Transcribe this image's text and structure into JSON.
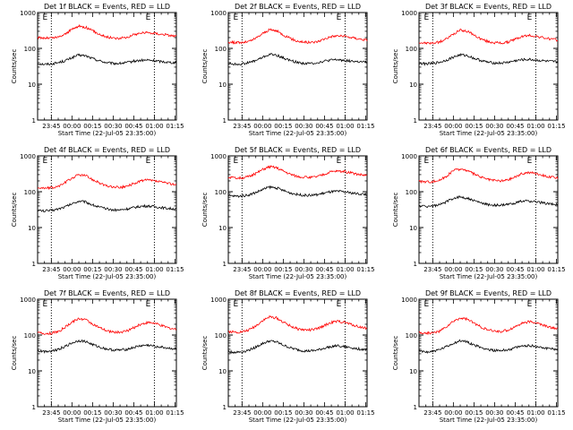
{
  "figure": {
    "xlabel": "Start Time (22-Jul-05 23:35:00)",
    "ylabel": "Counts/sec",
    "x_tick_labels": [
      "23:45",
      "00:00",
      "00:15",
      "00:30",
      "00:45",
      "01:00",
      "01:15"
    ],
    "y_tick_labels": [
      "1",
      "10",
      "100",
      "1000"
    ],
    "marker_label": "E",
    "colors": {
      "events": "#000000",
      "lld": "#ff0000",
      "axes": "#000000",
      "background": "#ffffff"
    }
  },
  "chart_data": [
    {
      "type": "line",
      "title": "Det 1f BLACK = Events, RED = LLD",
      "xlabel": "Start Time (22-Jul-05 23:35:00)",
      "ylabel": "Counts/sec",
      "yscale": "log",
      "ylim": [
        1,
        1000
      ],
      "xlim_minutes": [
        0,
        101
      ],
      "markers_minutes": [
        10,
        85
      ],
      "series": [
        {
          "name": "Events",
          "color": "#000000",
          "x_minutes": [
            0,
            5,
            10,
            15,
            20,
            25,
            30,
            35,
            40,
            45,
            50,
            55,
            60,
            65,
            70,
            75,
            80,
            85,
            90,
            95,
            101
          ],
          "y": [
            38,
            36,
            37,
            40,
            45,
            55,
            65,
            62,
            52,
            45,
            40,
            38,
            38,
            40,
            44,
            46,
            47,
            45,
            43,
            41,
            40
          ]
        },
        {
          "name": "LLD",
          "color": "#ff0000",
          "x_minutes": [
            0,
            5,
            10,
            15,
            20,
            25,
            30,
            35,
            40,
            45,
            50,
            55,
            60,
            65,
            70,
            75,
            80,
            85,
            90,
            95,
            101
          ],
          "y": [
            200,
            195,
            195,
            205,
            250,
            340,
            420,
            390,
            310,
            250,
            210,
            195,
            190,
            205,
            240,
            270,
            275,
            265,
            250,
            235,
            220
          ]
        }
      ]
    },
    {
      "type": "line",
      "title": "Det 2f BLACK = Events, RED = LLD",
      "xlabel": "Start Time (22-Jul-05 23:35:00)",
      "ylabel": "Counts/sec",
      "yscale": "log",
      "ylim": [
        1,
        1000
      ],
      "xlim_minutes": [
        0,
        101
      ],
      "markers_minutes": [
        10,
        85
      ],
      "series": [
        {
          "name": "Events",
          "color": "#000000",
          "x_minutes": [
            0,
            5,
            10,
            15,
            20,
            25,
            30,
            35,
            40,
            45,
            50,
            55,
            60,
            65,
            70,
            75,
            80,
            85,
            90,
            95,
            101
          ],
          "y": [
            38,
            36,
            37,
            40,
            46,
            56,
            68,
            65,
            54,
            46,
            41,
            38,
            38,
            40,
            44,
            47,
            48,
            46,
            44,
            42,
            41
          ]
        },
        {
          "name": "LLD",
          "color": "#ff0000",
          "x_minutes": [
            0,
            5,
            10,
            15,
            20,
            25,
            30,
            35,
            40,
            45,
            50,
            55,
            60,
            65,
            70,
            75,
            80,
            85,
            90,
            95,
            101
          ],
          "y": [
            150,
            145,
            145,
            155,
            190,
            260,
            330,
            310,
            240,
            190,
            160,
            150,
            145,
            155,
            185,
            215,
            225,
            215,
            200,
            185,
            170
          ]
        }
      ]
    },
    {
      "type": "line",
      "title": "Det 3f BLACK = Events, RED = LLD",
      "xlabel": "Start Time (22-Jul-05 23:35:00)",
      "ylabel": "Counts/sec",
      "yscale": "log",
      "ylim": [
        1,
        1000
      ],
      "xlim_minutes": [
        0,
        101
      ],
      "markers_minutes": [
        10,
        85
      ],
      "series": [
        {
          "name": "Events",
          "color": "#000000",
          "x_minutes": [
            0,
            5,
            10,
            15,
            20,
            25,
            30,
            35,
            40,
            45,
            50,
            55,
            60,
            65,
            70,
            75,
            80,
            85,
            90,
            95,
            101
          ],
          "y": [
            38,
            37,
            38,
            41,
            47,
            57,
            66,
            63,
            53,
            46,
            41,
            39,
            39,
            41,
            45,
            48,
            49,
            47,
            45,
            43,
            42
          ]
        },
        {
          "name": "LLD",
          "color": "#ff0000",
          "x_minutes": [
            0,
            5,
            10,
            15,
            20,
            25,
            30,
            35,
            40,
            45,
            50,
            55,
            60,
            65,
            70,
            75,
            80,
            85,
            90,
            95,
            101
          ],
          "y": [
            145,
            140,
            140,
            150,
            185,
            250,
            320,
            300,
            235,
            185,
            155,
            145,
            140,
            150,
            180,
            215,
            230,
            220,
            200,
            185,
            170
          ]
        }
      ]
    },
    {
      "type": "line",
      "title": "Det 4f BLACK = Events, RED = LLD",
      "xlabel": "Start Time (22-Jul-05 23:35:00)",
      "ylabel": "Counts/sec",
      "yscale": "log",
      "ylim": [
        1,
        1000
      ],
      "xlim_minutes": [
        0,
        101
      ],
      "markers_minutes": [
        10,
        85
      ],
      "series": [
        {
          "name": "Events",
          "color": "#000000",
          "x_minutes": [
            0,
            5,
            10,
            15,
            20,
            25,
            30,
            35,
            40,
            45,
            50,
            55,
            60,
            65,
            70,
            75,
            80,
            85,
            90,
            95,
            101
          ],
          "y": [
            30,
            29,
            30,
            33,
            38,
            46,
            55,
            52,
            43,
            37,
            33,
            31,
            31,
            33,
            36,
            39,
            40,
            38,
            36,
            34,
            33
          ]
        },
        {
          "name": "LLD",
          "color": "#ff0000",
          "x_minutes": [
            0,
            5,
            10,
            15,
            20,
            25,
            30,
            35,
            40,
            45,
            50,
            55,
            60,
            65,
            70,
            75,
            80,
            85,
            90,
            95,
            101
          ],
          "y": [
            130,
            125,
            128,
            140,
            180,
            240,
            300,
            280,
            220,
            175,
            145,
            135,
            132,
            140,
            170,
            200,
            210,
            200,
            185,
            170,
            160
          ]
        }
      ]
    },
    {
      "type": "line",
      "title": "Det 5f BLACK = Events, RED = LLD",
      "xlabel": "Start Time (22-Jul-05 23:35:00)",
      "ylabel": "Counts/sec",
      "yscale": "log",
      "ylim": [
        1,
        1000
      ],
      "xlim_minutes": [
        0,
        101
      ],
      "markers_minutes": [
        10,
        85
      ],
      "series": [
        {
          "name": "Events",
          "color": "#000000",
          "x_minutes": [
            0,
            5,
            10,
            15,
            20,
            25,
            30,
            35,
            40,
            45,
            50,
            55,
            60,
            65,
            70,
            75,
            80,
            85,
            90,
            95,
            101
          ],
          "y": [
            78,
            75,
            76,
            82,
            95,
            115,
            135,
            128,
            108,
            93,
            84,
            80,
            79,
            83,
            92,
            100,
            102,
            98,
            92,
            87,
            84
          ]
        },
        {
          "name": "LLD",
          "color": "#ff0000",
          "x_minutes": [
            0,
            5,
            10,
            15,
            20,
            25,
            30,
            35,
            40,
            45,
            50,
            55,
            60,
            65,
            70,
            75,
            80,
            85,
            90,
            95,
            101
          ],
          "y": [
            250,
            240,
            245,
            265,
            320,
            420,
            500,
            470,
            380,
            310,
            270,
            255,
            250,
            265,
            310,
            360,
            380,
            360,
            330,
            305,
            285
          ]
        }
      ]
    },
    {
      "type": "line",
      "title": "Det 6f BLACK = Events, RED = LLD",
      "xlabel": "Start Time (22-Jul-05 23:35:00)",
      "ylabel": "Counts/sec",
      "yscale": "log",
      "ylim": [
        1,
        1000
      ],
      "xlim_minutes": [
        0,
        101
      ],
      "markers_minutes": [
        10,
        85
      ],
      "series": [
        {
          "name": "Events",
          "color": "#000000",
          "x_minutes": [
            0,
            5,
            10,
            15,
            20,
            25,
            30,
            35,
            40,
            45,
            50,
            55,
            60,
            65,
            70,
            75,
            80,
            85,
            90,
            95,
            101
          ],
          "y": [
            40,
            39,
            40,
            43,
            52,
            66,
            72,
            66,
            56,
            49,
            44,
            42,
            42,
            44,
            49,
            54,
            55,
            52,
            49,
            46,
            44
          ]
        },
        {
          "name": "LLD",
          "color": "#ff0000",
          "x_minutes": [
            0,
            5,
            10,
            15,
            20,
            25,
            30,
            35,
            40,
            45,
            50,
            55,
            60,
            65,
            70,
            75,
            80,
            85,
            90,
            95,
            101
          ],
          "y": [
            195,
            190,
            192,
            210,
            270,
            390,
            430,
            390,
            310,
            255,
            220,
            205,
            200,
            215,
            260,
            320,
            345,
            325,
            290,
            260,
            240
          ]
        }
      ]
    },
    {
      "type": "line",
      "title": "Det 7f BLACK = Events, RED = LLD",
      "xlabel": "Start Time (22-Jul-05 23:35:00)",
      "ylabel": "Counts/sec",
      "yscale": "log",
      "ylim": [
        1,
        1000
      ],
      "xlim_minutes": [
        0,
        101
      ],
      "markers_minutes": [
        10,
        85
      ],
      "series": [
        {
          "name": "Events",
          "color": "#000000",
          "x_minutes": [
            0,
            5,
            10,
            15,
            20,
            25,
            30,
            35,
            40,
            45,
            50,
            55,
            60,
            65,
            70,
            75,
            80,
            85,
            90,
            95,
            101
          ],
          "y": [
            36,
            35,
            36,
            40,
            48,
            60,
            70,
            66,
            54,
            46,
            41,
            38,
            38,
            40,
            45,
            50,
            52,
            49,
            46,
            43,
            41
          ]
        },
        {
          "name": "LLD",
          "color": "#ff0000",
          "x_minutes": [
            0,
            5,
            10,
            15,
            20,
            25,
            30,
            35,
            40,
            45,
            50,
            55,
            60,
            65,
            70,
            75,
            80,
            85,
            90,
            95,
            101
          ],
          "y": [
            115,
            110,
            112,
            125,
            165,
            230,
            290,
            270,
            205,
            160,
            132,
            122,
            120,
            130,
            160,
            200,
            225,
            215,
            185,
            160,
            145
          ]
        }
      ]
    },
    {
      "type": "line",
      "title": "Det 8f BLACK = Events, RED = LLD",
      "xlabel": "Start Time (22-Jul-05 23:35:00)",
      "ylabel": "Counts/sec",
      "yscale": "log",
      "ylim": [
        1,
        1000
      ],
      "xlim_minutes": [
        0,
        101
      ],
      "markers_minutes": [
        10,
        85
      ],
      "series": [
        {
          "name": "Events",
          "color": "#000000",
          "x_minutes": [
            0,
            5,
            10,
            15,
            20,
            25,
            30,
            35,
            40,
            45,
            50,
            55,
            60,
            65,
            70,
            75,
            80,
            85,
            90,
            95,
            101
          ],
          "y": [
            34,
            33,
            34,
            38,
            46,
            58,
            68,
            64,
            52,
            44,
            39,
            36,
            36,
            38,
            43,
            48,
            50,
            47,
            44,
            41,
            39
          ]
        },
        {
          "name": "LLD",
          "color": "#ff0000",
          "x_minutes": [
            0,
            5,
            10,
            15,
            20,
            25,
            30,
            35,
            40,
            45,
            50,
            55,
            60,
            65,
            70,
            75,
            80,
            85,
            90,
            95,
            101
          ],
          "y": [
            125,
            120,
            122,
            138,
            180,
            255,
            320,
            300,
            230,
            180,
            150,
            140,
            138,
            150,
            185,
            225,
            240,
            225,
            195,
            170,
            155
          ]
        }
      ]
    },
    {
      "type": "line",
      "title": "Det 9f BLACK = Events, RED = LLD",
      "xlabel": "Start Time (22-Jul-05 23:35:00)",
      "ylabel": "Counts/sec",
      "yscale": "log",
      "ylim": [
        1,
        1000
      ],
      "xlim_minutes": [
        0,
        101
      ],
      "markers_minutes": [
        10,
        85
      ],
      "series": [
        {
          "name": "Events",
          "color": "#000000",
          "x_minutes": [
            0,
            5,
            10,
            15,
            20,
            25,
            30,
            35,
            40,
            45,
            50,
            55,
            60,
            65,
            70,
            75,
            80,
            85,
            90,
            95,
            101
          ],
          "y": [
            35,
            34,
            35,
            39,
            47,
            59,
            69,
            65,
            53,
            45,
            40,
            37,
            37,
            39,
            44,
            49,
            51,
            48,
            45,
            42,
            40
          ]
        },
        {
          "name": "LLD",
          "color": "#ff0000",
          "x_minutes": [
            0,
            5,
            10,
            15,
            20,
            25,
            30,
            35,
            40,
            45,
            50,
            55,
            60,
            65,
            70,
            75,
            80,
            85,
            90,
            95,
            101
          ],
          "y": [
            118,
            113,
            115,
            128,
            170,
            240,
            300,
            280,
            215,
            168,
            138,
            128,
            126,
            138,
            172,
            215,
            235,
            222,
            190,
            165,
            150
          ]
        }
      ]
    }
  ]
}
